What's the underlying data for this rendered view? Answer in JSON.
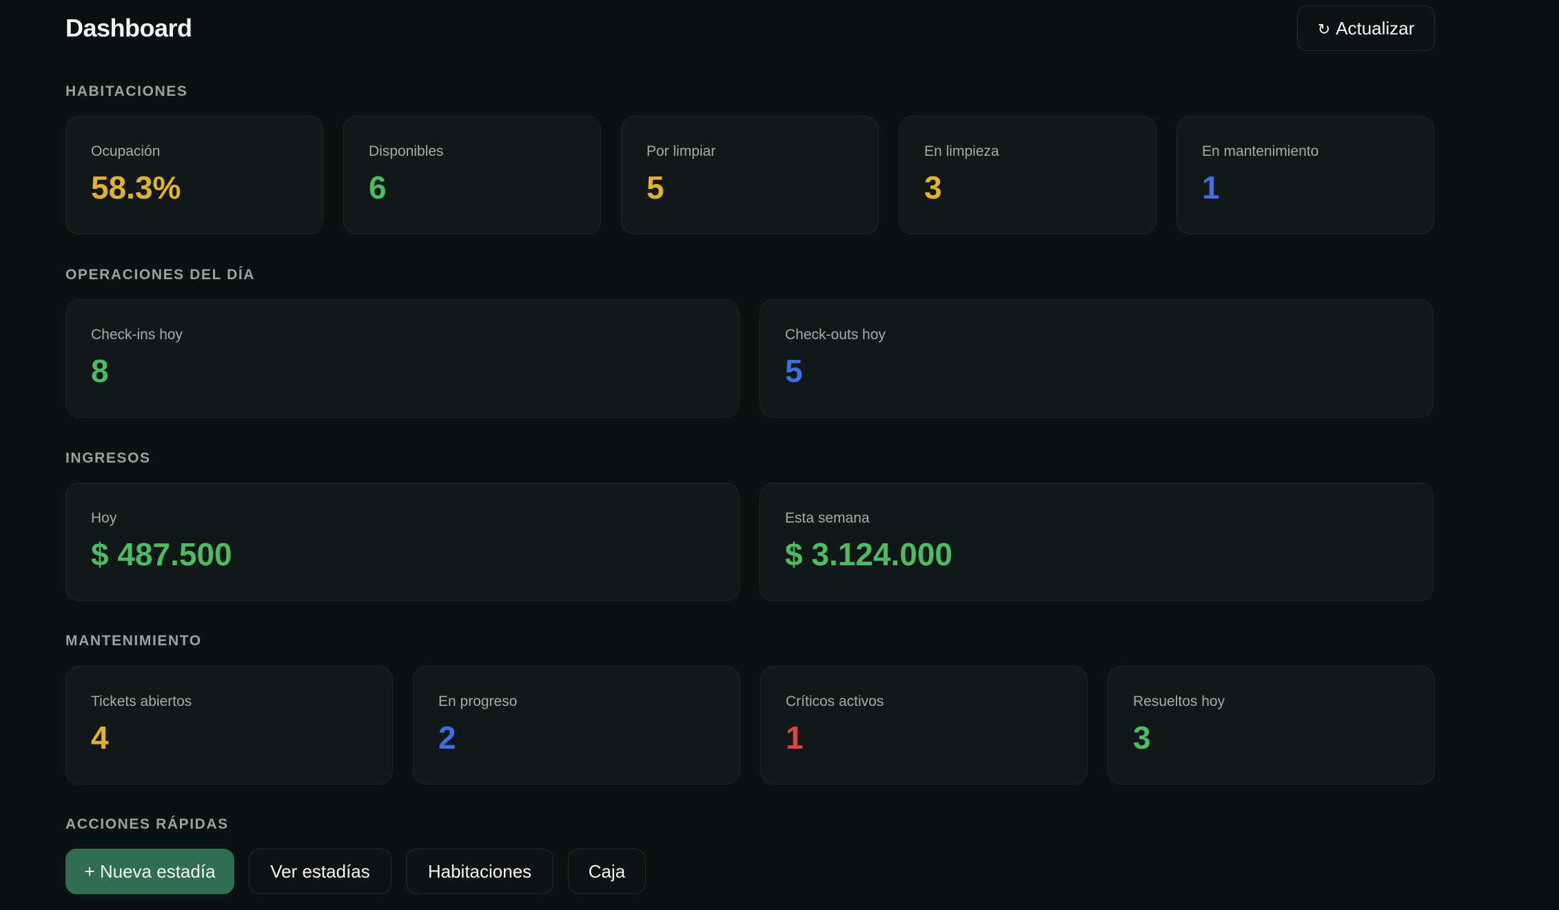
{
  "header": {
    "title": "Dashboard",
    "refresh_icon": "↻",
    "refresh_label": "Actualizar"
  },
  "sections": {
    "habitaciones": {
      "title": "HABITACIONES",
      "cards": [
        {
          "label": "Ocupación",
          "value": "58.3%",
          "color": "#e3b22d"
        },
        {
          "label": "Disponibles",
          "value": "6",
          "color": "#4cbb63"
        },
        {
          "label": "Por limpiar",
          "value": "5",
          "color": "#e3b22d"
        },
        {
          "label": "En limpieza",
          "value": "3",
          "color": "#e3b22d"
        },
        {
          "label": "En mantenimiento",
          "value": "1",
          "color": "#3f6fe0"
        }
      ]
    },
    "operaciones": {
      "title": "OPERACIONES DEL DÍA",
      "cards": [
        {
          "label": "Check-ins hoy",
          "value": "8",
          "color": "#4cbb63"
        },
        {
          "label": "Check-outs hoy",
          "value": "5",
          "color": "#3f6fe0"
        }
      ]
    },
    "ingresos": {
      "title": "INGRESOS",
      "cards": [
        {
          "label": "Hoy",
          "value": "$ 487.500",
          "color": "#4cbb63"
        },
        {
          "label": "Esta semana",
          "value": "$ 3.124.000",
          "color": "#4cbb63"
        }
      ]
    },
    "mantenimiento": {
      "title": "MANTENIMIENTO",
      "cards": [
        {
          "label": "Tickets abiertos",
          "value": "4",
          "color": "#e3b22d"
        },
        {
          "label": "En progreso",
          "value": "2",
          "color": "#3f6fe0"
        },
        {
          "label": "Críticos activos",
          "value": "1",
          "color": "#dc4441"
        },
        {
          "label": "Resueltos hoy",
          "value": "3",
          "color": "#4cbb63"
        }
      ]
    },
    "acciones": {
      "title": "ACCIONES RÁPIDAS",
      "buttons": [
        {
          "label": "+ Nueva estadía"
        },
        {
          "label": "Ver estadías"
        },
        {
          "label": "Habitaciones"
        },
        {
          "label": "Caja"
        }
      ]
    }
  },
  "colors": {
    "background": "#0b1110",
    "card": "#121817",
    "primary_button": "#2f6e52",
    "yellow": "#e3b22d",
    "green": "#4cbb63",
    "blue": "#3f6fe0",
    "red": "#dc4441"
  }
}
